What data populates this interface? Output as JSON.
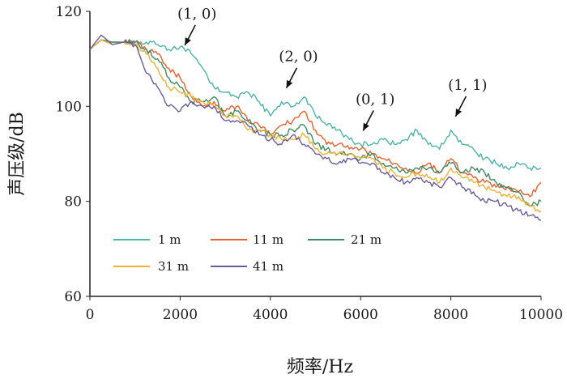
{
  "chart_data": {
    "type": "line",
    "title": "",
    "xlabel": "频率/Hz",
    "ylabel": "声压级/dB",
    "xlim": [
      0,
      10000
    ],
    "ylim": [
      60,
      120
    ],
    "xticks": [
      0,
      2000,
      4000,
      6000,
      8000,
      10000
    ],
    "xtick_labels": [
      "0",
      "2000",
      "4000",
      "6000",
      "8000",
      "10000"
    ],
    "yticks": [
      60,
      80,
      100,
      120
    ],
    "ytick_labels": [
      "60",
      "80",
      "100",
      "120"
    ],
    "grid": false,
    "legend_position": "bottom-left",
    "x": [
      0,
      250,
      500,
      750,
      1000,
      1250,
      1500,
      1750,
      2000,
      2250,
      2500,
      2750,
      3000,
      3250,
      3500,
      3750,
      4000,
      4250,
      4500,
      4750,
      5000,
      5250,
      5500,
      5750,
      6000,
      6250,
      6500,
      6750,
      7000,
      7250,
      7500,
      7750,
      8000,
      8250,
      8500,
      8750,
      9000,
      9250,
      9500,
      9750,
      10000
    ],
    "series": [
      {
        "name": "1 m",
        "color": "#4bb5a8",
        "values": [
          112,
          114,
          113.5,
          113.5,
          113.5,
          113.5,
          113,
          112,
          112.5,
          111,
          108,
          104,
          103,
          102,
          103,
          101,
          98,
          101,
          100,
          102,
          98,
          96,
          95,
          93,
          92,
          92,
          93,
          92,
          93,
          95,
          92,
          91,
          95,
          92,
          91,
          89,
          88,
          87,
          88,
          87,
          87
        ]
      },
      {
        "name": "11 m",
        "color": "#e8602c",
        "values": [
          112,
          114,
          113.5,
          113.5,
          113.5,
          112,
          111,
          108,
          106,
          102,
          100,
          101,
          99,
          100,
          97,
          96,
          94,
          96,
          97,
          99,
          95,
          92,
          92,
          91,
          91,
          90,
          89,
          88,
          87,
          86,
          88,
          86,
          89,
          86,
          85,
          84,
          83,
          83,
          82,
          81,
          84
        ]
      },
      {
        "name": "21 m",
        "color": "#3e8a62",
        "values": [
          112,
          114,
          113.5,
          113.5,
          113.5,
          112,
          110,
          106,
          104,
          101,
          101,
          102,
          98,
          99,
          97,
          95,
          94,
          94,
          95,
          96,
          92,
          91,
          90,
          90,
          89,
          90,
          88,
          87,
          86,
          87,
          87,
          86,
          88,
          86,
          87,
          86,
          84,
          83,
          82,
          79,
          80
        ]
      },
      {
        "name": "31 m",
        "color": "#f0b033",
        "values": [
          112,
          114,
          113,
          113.5,
          113,
          111,
          108,
          104,
          103,
          102,
          101,
          100,
          98,
          98,
          95,
          95,
          94,
          93,
          93,
          94,
          91,
          90,
          90,
          90,
          89,
          89,
          87,
          86,
          85,
          86,
          85,
          84,
          87,
          85,
          84,
          83,
          82,
          81,
          81,
          79,
          78
        ]
      },
      {
        "name": "41 m",
        "color": "#6b5b9d",
        "values": [
          112,
          115,
          113,
          113.5,
          113,
          107,
          104,
          100,
          99,
          101,
          100,
          100,
          97,
          97,
          96,
          94,
          93,
          92,
          94,
          92,
          90,
          89,
          88,
          89,
          88,
          88,
          86,
          85,
          84,
          85,
          84,
          83,
          85,
          83,
          82,
          80,
          80,
          79,
          78,
          77,
          76
        ]
      }
    ],
    "annotations": [
      {
        "text": "(1, 0)",
        "x": 2050,
        "y": 112
      },
      {
        "text": "(2, 0)",
        "x": 4300,
        "y": 103
      },
      {
        "text": "(0, 1)",
        "x": 6000,
        "y": 94
      },
      {
        "text": "(1, 1)",
        "x": 8050,
        "y": 97
      }
    ]
  }
}
